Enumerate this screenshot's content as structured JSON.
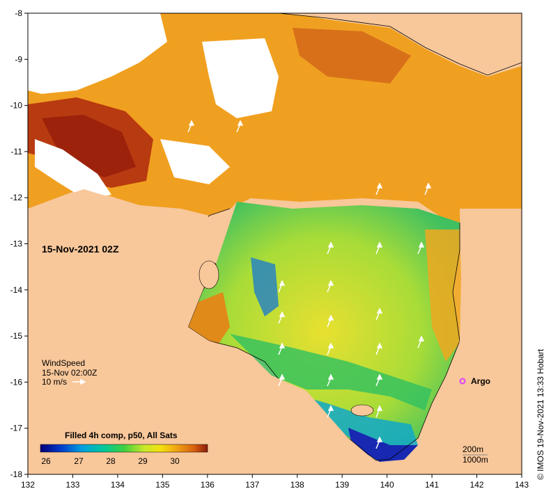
{
  "map": {
    "timestamp_label": "15-Nov-2021 02Z",
    "wind": {
      "title": "WindSpeed",
      "time": "15-Nov 02:00Z",
      "scale_label": "10 m/s"
    },
    "argo_label": "Argo",
    "colorbar": {
      "title": "Filled 4h comp, p50, All Sats",
      "ticks": [
        "26",
        "27",
        "28",
        "29",
        "30"
      ]
    },
    "contours": [
      "200m",
      "1000m"
    ],
    "credit": "© IMOS 19-Nov-2021 13:33 Hobart",
    "x_ticks": [
      "132",
      "133",
      "134",
      "135",
      "136",
      "137",
      "138",
      "139",
      "140",
      "141",
      "142",
      "143"
    ],
    "y_ticks": [
      "-8",
      "-9",
      "-10",
      "-11",
      "-12",
      "-13",
      "-14",
      "-15",
      "-16",
      "-17",
      "-18"
    ],
    "colors": {
      "land": "#F8C79A",
      "no_data": "#FFFFFF",
      "argo_marker": "#E040FB"
    }
  }
}
